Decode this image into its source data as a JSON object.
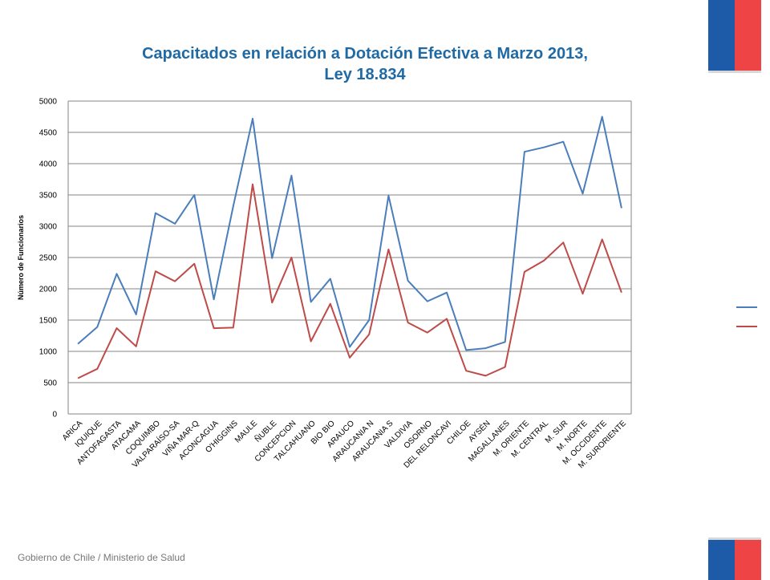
{
  "footer_text": "Gobierno de Chile / Ministerio de Salud",
  "colors": {
    "title": "#1f6aa5",
    "series_blue": "#4a7ebb",
    "series_red": "#be4b48",
    "flag_blue": "#1d5aa8",
    "flag_red": "#ef4446",
    "grid": "#868686"
  },
  "chart_data": {
    "type": "line",
    "title": [
      "Capacitados en relación a Dotación Efectiva a Marzo 2013,",
      "Ley 18.834"
    ],
    "ylabel": "Número de Funcionarios",
    "xlabel": "",
    "ylim": [
      0,
      5000
    ],
    "yticks": [
      0,
      500,
      1000,
      1500,
      2000,
      2500,
      3000,
      3500,
      4000,
      4500,
      5000
    ],
    "grid": true,
    "legend": "right",
    "categories": [
      "ARICA",
      "IQUIQUE",
      "ANTOFAGASTA",
      "ATACAMA",
      "COQUIMBO",
      "VALPARAÍSO-SA",
      "VIÑA MAR-Q",
      "ACONCAGUA",
      "O'HIGGINS",
      "MAULE",
      "ÑUBLE",
      "CONCEPCION",
      "TALCAHUANO",
      "BIO BIO",
      "ARAUCO",
      "ARAUCANIA N",
      "ARAUCANIA S",
      "VALDIVIA",
      "OSORNO",
      "DEL RELONCAVI",
      "CHILOE",
      "AYSÉN",
      "MAGALLANES",
      "M. ORIENTE",
      "M. CENTRAL",
      "M. SUR",
      "M. NORTE",
      "M. OCCIDENTE",
      "M. SURORIENTE"
    ],
    "series": [
      {
        "values": [
          1120,
          1390,
          2240,
          1590,
          3210,
          3040,
          3500,
          1830,
          3320,
          4720,
          2490,
          3810,
          1790,
          2160,
          1070,
          1500,
          3490,
          2130,
          1800,
          1940,
          1020,
          1050,
          1150,
          4190,
          4260,
          4350,
          3520,
          4750,
          3290
        ]
      },
      {
        "values": [
          570,
          720,
          1370,
          1080,
          2280,
          2120,
          2400,
          1370,
          1380,
          3670,
          1780,
          2500,
          1160,
          1760,
          900,
          1270,
          2630,
          1460,
          1300,
          1520,
          690,
          610,
          750,
          2270,
          2450,
          2740,
          1920,
          2790,
          1940
        ]
      }
    ]
  }
}
